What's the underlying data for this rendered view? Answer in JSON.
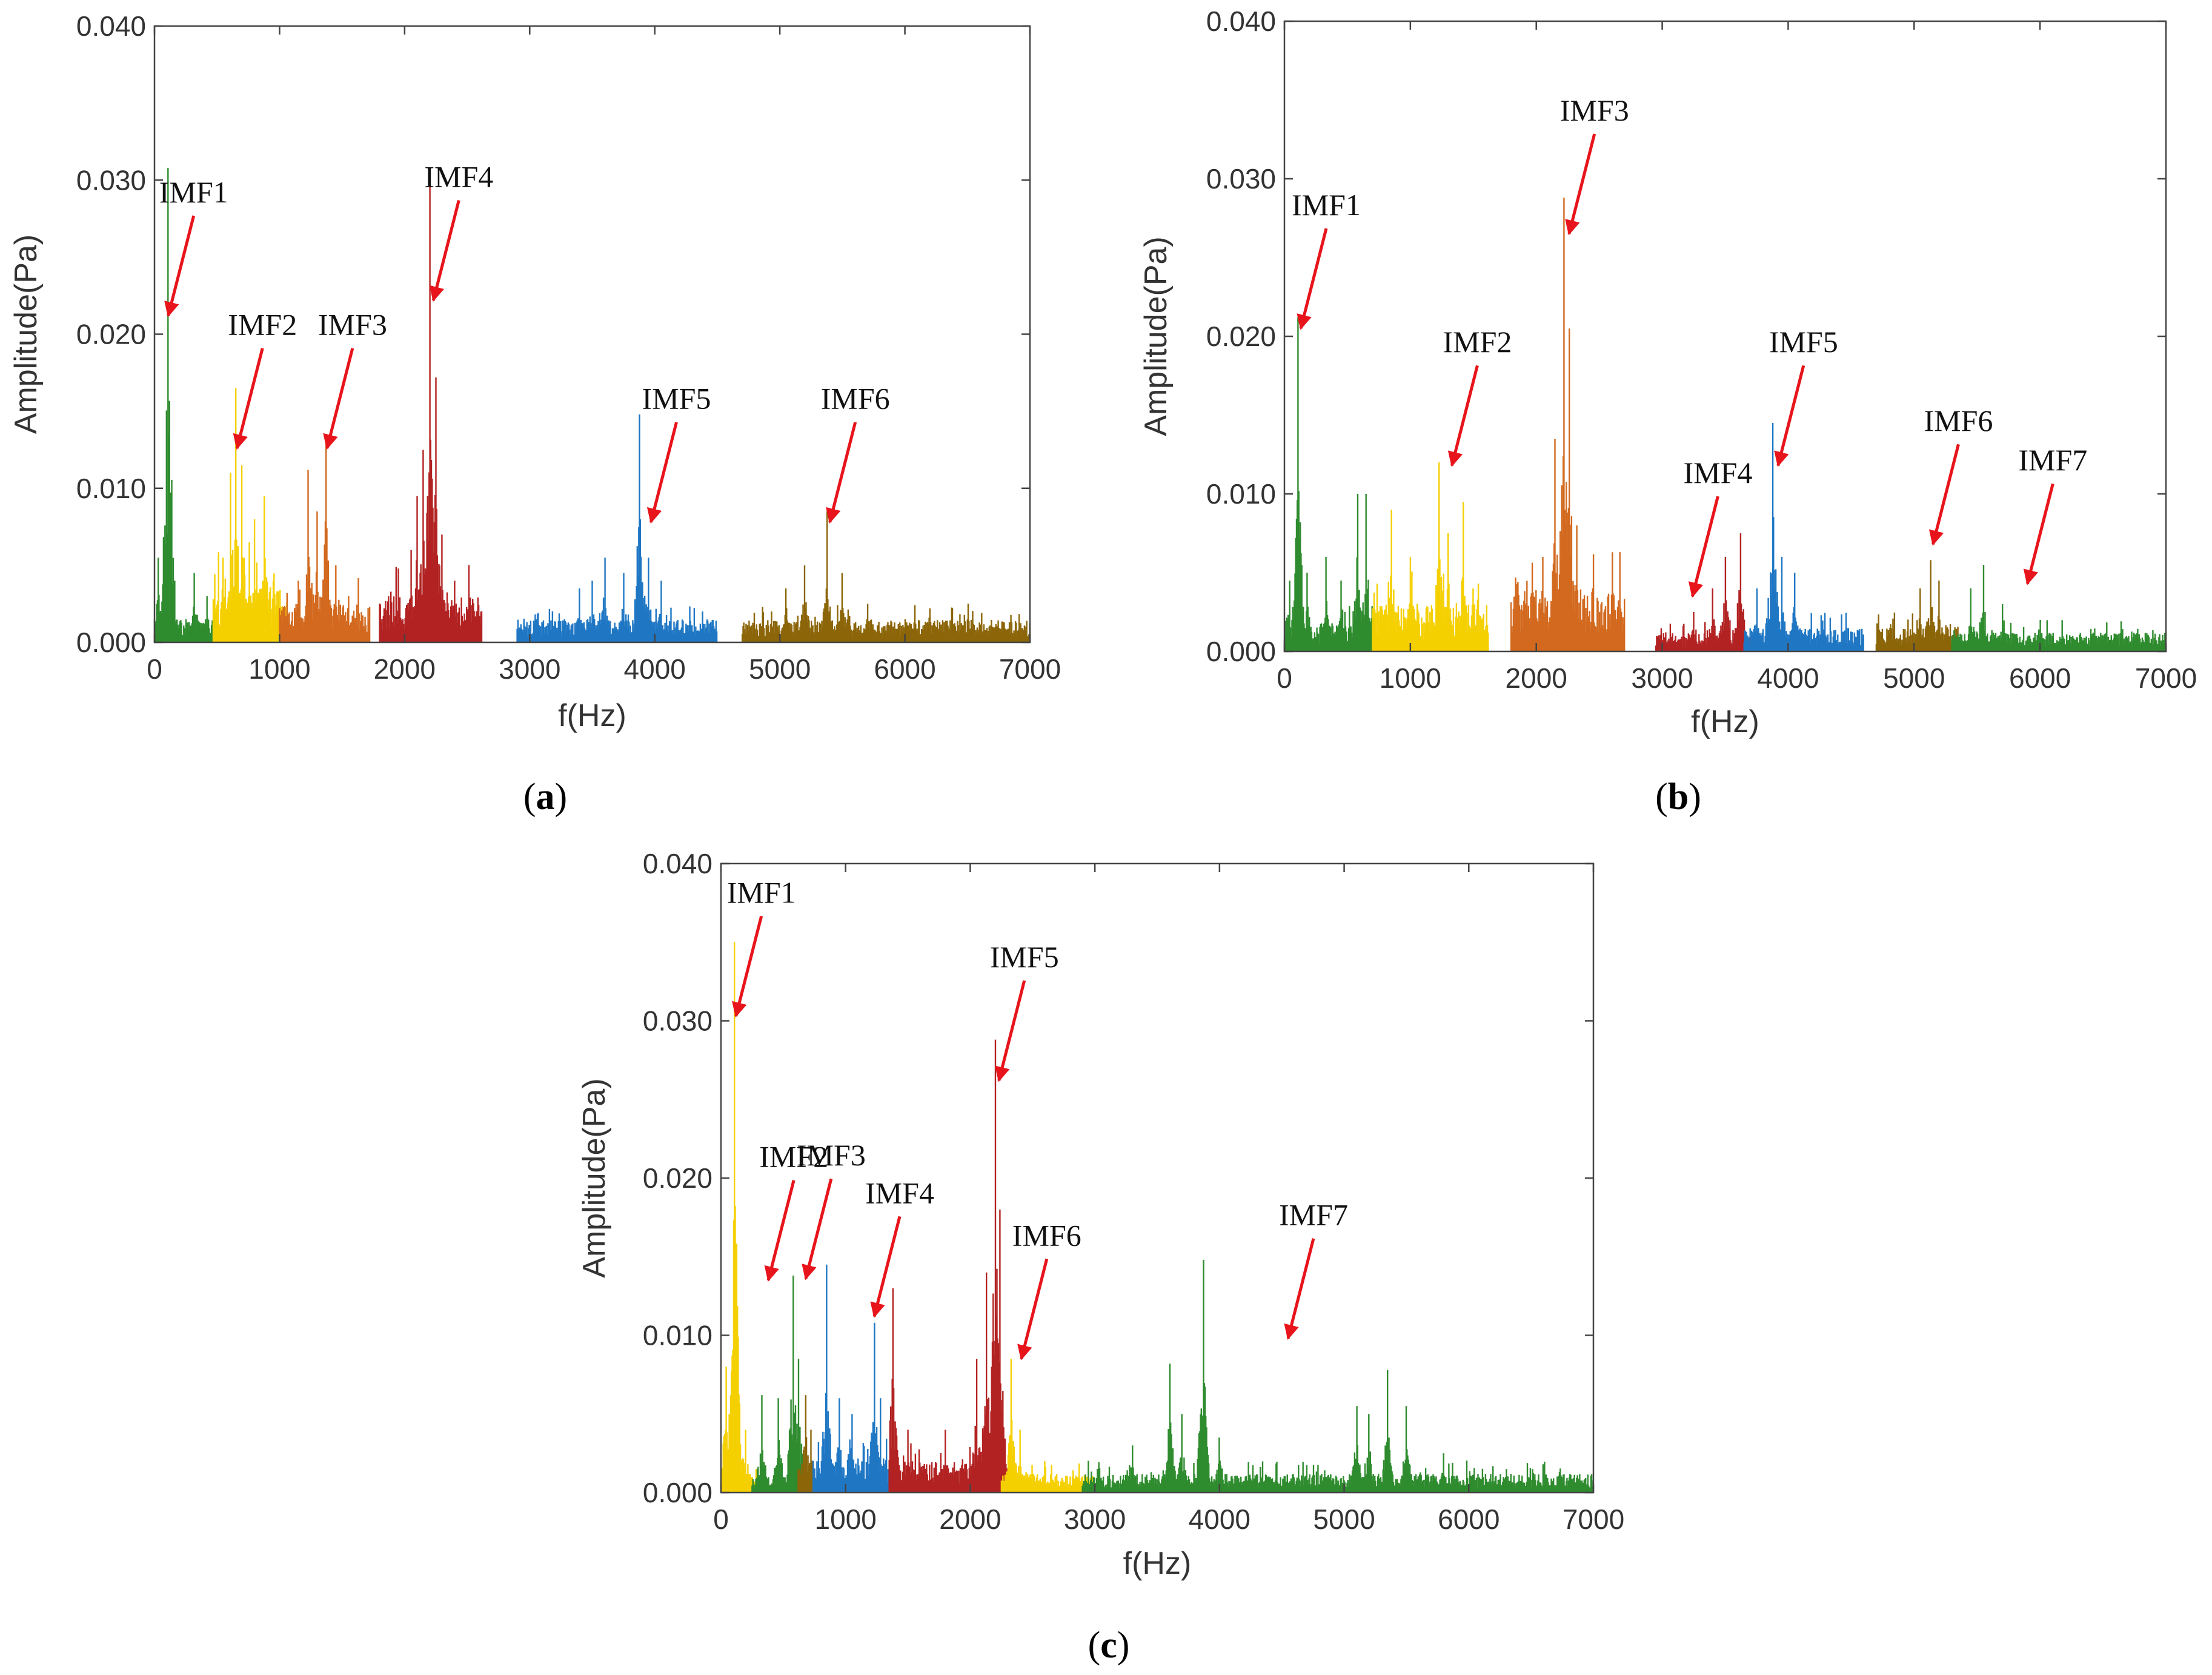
{
  "figure": {
    "panels": [
      {
        "id": "a",
        "label_open": "(",
        "label_letter": "a",
        "label_close": ")",
        "imfs": [
          {
            "name": "IMF1",
            "color": "#2e8b2e",
            "range": [
              0,
              520
            ],
            "base": 0.0015,
            "peaks": [
              [
                30,
                0.0055
              ],
              [
                110,
                0.0308
              ],
              [
                160,
                0.004
              ],
              [
                320,
                0.0045
              ],
              [
                420,
                0.003
              ]
            ]
          },
          {
            "name": "IMF2",
            "color": "#f5d000",
            "range": [
              470,
              1060
            ],
            "base": 0.0035,
            "peaks": [
              [
                550,
                0.0055
              ],
              [
                610,
                0.011
              ],
              [
                650,
                0.0165
              ],
              [
                700,
                0.0115
              ],
              [
                760,
                0.0065
              ],
              [
                800,
                0.008
              ],
              [
                880,
                0.0095
              ],
              [
                950,
                0.004
              ]
            ]
          },
          {
            "name": "IMF3",
            "color": "#d2691e",
            "range": [
              1000,
              1720
            ],
            "base": 0.0025,
            "peaks": [
              [
                1150,
                0.004
              ],
              [
                1230,
                0.0112
              ],
              [
                1300,
                0.0085
              ],
              [
                1370,
                0.0133
              ],
              [
                1450,
                0.005
              ],
              [
                1550,
                0.003
              ]
            ]
          },
          {
            "name": "IMF4",
            "color": "#b22222",
            "range": [
              1800,
              2620
            ],
            "base": 0.003,
            "peaks": [
              [
                2050,
                0.006
              ],
              [
                2100,
                0.0095
              ],
              [
                2150,
                0.0125
              ],
              [
                2200,
                0.0298
              ],
              [
                2250,
                0.0172
              ],
              [
                2300,
                0.007
              ],
              [
                2400,
                0.004
              ]
            ]
          },
          {
            "name": "IMF5",
            "color": "#1f77c4",
            "range": [
              2900,
              4500
            ],
            "base": 0.0015,
            "peaks": [
              [
                3400,
                0.0035
              ],
              [
                3500,
                0.004
              ],
              [
                3600,
                0.0055
              ],
              [
                3750,
                0.0045
              ],
              [
                3880,
                0.0148
              ],
              [
                3950,
                0.0055
              ],
              [
                4050,
                0.004
              ]
            ]
          },
          {
            "name": "IMF6",
            "color": "#8b6508",
            "range": [
              4700,
              7000
            ],
            "base": 0.0015,
            "peaks": [
              [
                5050,
                0.0035
              ],
              [
                5200,
                0.005
              ],
              [
                5380,
                0.0085
              ],
              [
                5500,
                0.0045
              ],
              [
                5700,
                0.0025
              ],
              [
                6000,
                0.0015
              ]
            ]
          }
        ],
        "annotations": [
          {
            "text": "IMF1",
            "x": 110,
            "y": 0.0212
          },
          {
            "text": "IMF2",
            "x": 660,
            "y": 0.0126
          },
          {
            "text": "IMF3",
            "x": 1380,
            "y": 0.0126
          },
          {
            "text": "IMF4",
            "x": 2230,
            "y": 0.0222
          },
          {
            "text": "IMF5",
            "x": 3970,
            "y": 0.0078
          },
          {
            "text": "IMF6",
            "x": 5400,
            "y": 0.0078
          }
        ]
      },
      {
        "id": "b",
        "label_open": "(",
        "label_letter": "b",
        "label_close": ")",
        "imfs": [
          {
            "name": "IMF1",
            "color": "#2e8b2e",
            "range": [
              0,
              720
            ],
            "base": 0.0018,
            "peaks": [
              [
                40,
                0.0045
              ],
              [
                110,
                0.0212
              ],
              [
                180,
                0.005
              ],
              [
                330,
                0.006
              ],
              [
                450,
                0.0045
              ],
              [
                580,
                0.01
              ],
              [
                650,
                0.01
              ]
            ]
          },
          {
            "name": "IMF2",
            "color": "#f5d000",
            "range": [
              700,
              1620
            ],
            "base": 0.003,
            "peaks": [
              [
                850,
                0.009
              ],
              [
                1000,
                0.006
              ],
              [
                1230,
                0.012
              ],
              [
                1300,
                0.0075
              ],
              [
                1420,
                0.0095
              ],
              [
                1500,
                0.004
              ]
            ]
          },
          {
            "name": "IMF3",
            "color": "#d2691e",
            "range": [
              1800,
              2700
            ],
            "base": 0.004,
            "peaks": [
              [
                2050,
                0.006
              ],
              [
                2150,
                0.0135
              ],
              [
                2220,
                0.0288
              ],
              [
                2260,
                0.0205
              ],
              [
                2320,
                0.008
              ],
              [
                2450,
                0.004
              ]
            ]
          },
          {
            "name": "IMF4",
            "color": "#b22222",
            "range": [
              2950,
              3700
            ],
            "base": 0.0012,
            "peaks": [
              [
                3250,
                0.0025
              ],
              [
                3400,
                0.004
              ],
              [
                3500,
                0.006
              ],
              [
                3620,
                0.0075
              ]
            ]
          },
          {
            "name": "IMF5",
            "color": "#1f77c4",
            "range": [
              3650,
              4600
            ],
            "base": 0.0015,
            "peaks": [
              [
                3750,
                0.004
              ],
              [
                3880,
                0.0145
              ],
              [
                3950,
                0.006
              ],
              [
                4050,
                0.005
              ]
            ]
          },
          {
            "name": "IMF6",
            "color": "#8b6508",
            "range": [
              4700,
              5350
            ],
            "base": 0.0015,
            "peaks": [
              [
                5050,
                0.004
              ],
              [
                5130,
                0.0058
              ],
              [
                5200,
                0.0045
              ]
            ]
          },
          {
            "name": "IMF7",
            "color": "#2e8b2e",
            "range": [
              5300,
              7000
            ],
            "base": 0.0012,
            "peaks": [
              [
                5450,
                0.004
              ],
              [
                5550,
                0.0055
              ],
              [
                5700,
                0.003
              ],
              [
                6000,
                0.002
              ]
            ]
          }
        ],
        "annotations": [
          {
            "text": "IMF1",
            "x": 130,
            "y": 0.0205
          },
          {
            "text": "IMF2",
            "x": 1330,
            "y": 0.0118
          },
          {
            "text": "IMF3",
            "x": 2260,
            "y": 0.0265
          },
          {
            "text": "IMF4",
            "x": 3240,
            "y": 0.0035
          },
          {
            "text": "IMF5",
            "x": 3920,
            "y": 0.0118
          },
          {
            "text": "IMF6",
            "x": 5150,
            "y": 0.0068
          },
          {
            "text": "IMF7",
            "x": 5900,
            "y": 0.0043
          }
        ]
      },
      {
        "id": "c",
        "label_open": "(",
        "label_letter": "c",
        "label_close": ")",
        "imfs": [
          {
            "name": "IMF1",
            "color": "#f5d000",
            "range": [
              0,
              300
            ],
            "base": 0.0015,
            "peaks": [
              [
                40,
                0.008
              ],
              [
                110,
                0.035
              ],
              [
                200,
                0.004
              ]
            ]
          },
          {
            "name": "IMF2",
            "color": "#2e8b2e",
            "range": [
              250,
              660
            ],
            "base": 0.001,
            "peaks": [
              [
                330,
                0.0062
              ],
              [
                460,
                0.006
              ],
              [
                580,
                0.0138
              ],
              [
                620,
                0.0085
              ]
            ]
          },
          {
            "name": "IMF3",
            "color": "#8b6508",
            "range": [
              620,
              760
            ],
            "base": 0.0015,
            "peaks": [
              [
                680,
                0.0062
              ],
              [
                720,
                0.004
              ]
            ]
          },
          {
            "name": "IMF4",
            "color": "#1f77c4",
            "range": [
              740,
              1400
            ],
            "base": 0.0022,
            "peaks": [
              [
                850,
                0.0145
              ],
              [
                950,
                0.006
              ],
              [
                1050,
                0.005
              ],
              [
                1230,
                0.0108
              ],
              [
                1280,
                0.006
              ]
            ]
          },
          {
            "name": "IMF5",
            "color": "#b22222",
            "range": [
              1350,
              2300
            ],
            "base": 0.002,
            "peaks": [
              [
                1380,
                0.013
              ],
              [
                1500,
                0.004
              ],
              [
                1800,
                0.004
              ],
              [
                2050,
                0.0085
              ],
              [
                2130,
                0.014
              ],
              [
                2200,
                0.0288
              ],
              [
                2240,
                0.018
              ]
            ]
          },
          {
            "name": "IMF6",
            "color": "#f5d000",
            "range": [
              2250,
              3000
            ],
            "base": 0.0012,
            "peaks": [
              [
                2330,
                0.0085
              ],
              [
                2400,
                0.004
              ],
              [
                2600,
                0.002
              ]
            ]
          },
          {
            "name": "IMF7",
            "color": "#2e8b2e",
            "range": [
              2900,
              7000
            ],
            "base": 0.0012,
            "peaks": [
              [
                3300,
                0.003
              ],
              [
                3600,
                0.0082
              ],
              [
                3700,
                0.005
              ],
              [
                3870,
                0.0148
              ],
              [
                4000,
                0.0035
              ],
              [
                5100,
                0.0055
              ],
              [
                5200,
                0.005
              ],
              [
                5350,
                0.0078
              ],
              [
                5500,
                0.0055
              ],
              [
                5800,
                0.0025
              ],
              [
                6300,
                0.0015
              ]
            ]
          }
        ],
        "annotations": [
          {
            "text": "IMF1",
            "x": 120,
            "y": 0.0303
          },
          {
            "text": "IMF2",
            "x": 380,
            "y": 0.0135
          },
          {
            "text": "IMF3",
            "x": 680,
            "y": 0.0136
          },
          {
            "text": "IMF4",
            "x": 1230,
            "y": 0.0112
          },
          {
            "text": "IMF5",
            "x": 2230,
            "y": 0.0262
          },
          {
            "text": "IMF6",
            "x": 2410,
            "y": 0.0085
          },
          {
            "text": "IMF7",
            "x": 4550,
            "y": 0.0098
          }
        ]
      }
    ]
  },
  "chart_data": [
    {
      "type": "line",
      "panel": "(a)",
      "title": "",
      "xlabel": "f(Hz)",
      "ylabel": "Amplitude(Pa)",
      "xlim": [
        0,
        7000
      ],
      "ylim": [
        0,
        0.04
      ],
      "xticks": [
        "0",
        "1000",
        "2000",
        "3000",
        "4000",
        "5000",
        "6000",
        "7000"
      ],
      "yticks": [
        "0.000",
        "0.010",
        "0.020",
        "0.030",
        "0.040"
      ],
      "series": [
        {
          "name": "IMF1",
          "peak_frequency_hz": 110,
          "peak_amplitude_pa": 0.0308
        },
        {
          "name": "IMF2",
          "peak_frequency_hz": 650,
          "peak_amplitude_pa": 0.0165
        },
        {
          "name": "IMF3",
          "peak_frequency_hz": 1370,
          "peak_amplitude_pa": 0.0133
        },
        {
          "name": "IMF4",
          "peak_frequency_hz": 2200,
          "peak_amplitude_pa": 0.0298
        },
        {
          "name": "IMF5",
          "peak_frequency_hz": 3880,
          "peak_amplitude_pa": 0.0148
        },
        {
          "name": "IMF6",
          "peak_frequency_hz": 5380,
          "peak_amplitude_pa": 0.0085
        }
      ]
    },
    {
      "type": "line",
      "panel": "(b)",
      "title": "",
      "xlabel": "f(Hz)",
      "ylabel": "Amplitude(Pa)",
      "xlim": [
        0,
        7000
      ],
      "ylim": [
        0,
        0.04
      ],
      "xticks": [
        "0",
        "1000",
        "2000",
        "3000",
        "4000",
        "5000",
        "6000",
        "7000"
      ],
      "yticks": [
        "0.000",
        "0.010",
        "0.020",
        "0.030",
        "0.040"
      ],
      "series": [
        {
          "name": "IMF1",
          "peak_frequency_hz": 110,
          "peak_amplitude_pa": 0.0212
        },
        {
          "name": "IMF2",
          "peak_frequency_hz": 1230,
          "peak_amplitude_pa": 0.012
        },
        {
          "name": "IMF3",
          "peak_frequency_hz": 2220,
          "peak_amplitude_pa": 0.0288
        },
        {
          "name": "IMF4",
          "peak_frequency_hz": 3620,
          "peak_amplitude_pa": 0.0075
        },
        {
          "name": "IMF5",
          "peak_frequency_hz": 3880,
          "peak_amplitude_pa": 0.0145
        },
        {
          "name": "IMF6",
          "peak_frequency_hz": 5130,
          "peak_amplitude_pa": 0.0058
        },
        {
          "name": "IMF7",
          "peak_frequency_hz": 5550,
          "peak_amplitude_pa": 0.0055
        }
      ]
    },
    {
      "type": "line",
      "panel": "(c)",
      "title": "",
      "xlabel": "f(Hz)",
      "ylabel": "Amplitude(Pa)",
      "xlim": [
        0,
        7000
      ],
      "ylim": [
        0,
        0.04
      ],
      "xticks": [
        "0",
        "1000",
        "2000",
        "3000",
        "4000",
        "5000",
        "6000",
        "7000"
      ],
      "yticks": [
        "0.000",
        "0.010",
        "0.020",
        "0.030",
        "0.040"
      ],
      "series": [
        {
          "name": "IMF1",
          "peak_frequency_hz": 110,
          "peak_amplitude_pa": 0.035
        },
        {
          "name": "IMF2",
          "peak_frequency_hz": 580,
          "peak_amplitude_pa": 0.0138
        },
        {
          "name": "IMF3",
          "peak_frequency_hz": 680,
          "peak_amplitude_pa": 0.0062
        },
        {
          "name": "IMF4",
          "peak_frequency_hz": 850,
          "peak_amplitude_pa": 0.0145
        },
        {
          "name": "IMF5",
          "peak_frequency_hz": 2200,
          "peak_amplitude_pa": 0.0288
        },
        {
          "name": "IMF6",
          "peak_frequency_hz": 2330,
          "peak_amplitude_pa": 0.0085
        },
        {
          "name": "IMF7",
          "peak_frequency_hz": 3870,
          "peak_amplitude_pa": 0.0148
        }
      ]
    }
  ]
}
